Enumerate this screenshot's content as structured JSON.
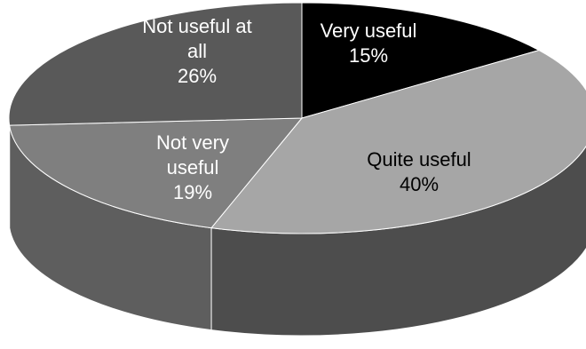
{
  "chart_data": {
    "type": "pie",
    "style": "3d-grayscale",
    "title": "",
    "slices": [
      {
        "name": "Very useful",
        "label_lines": [
          "Very useful",
          "15%"
        ],
        "value": 15,
        "color": "#000000",
        "side_color": "#0d0d0d",
        "label_color": "white"
      },
      {
        "name": "Quite useful",
        "label_lines": [
          "Quite useful",
          "40%"
        ],
        "value": 40,
        "color": "#a6a6a6",
        "side_color": "#4d4d4d",
        "label_color": "black"
      },
      {
        "name": "Not very useful",
        "label_lines": [
          "Not very",
          "useful",
          "19%"
        ],
        "value": 19,
        "color": "#7f7f7f",
        "side_color": "#5e5e5e",
        "label_color": "white"
      },
      {
        "name": "Not useful at all",
        "label_lines": [
          "Not useful at",
          "all",
          "26%"
        ],
        "value": 26,
        "color": "#595959",
        "side_color": "#3a3a3a",
        "label_color": "white"
      }
    ]
  }
}
